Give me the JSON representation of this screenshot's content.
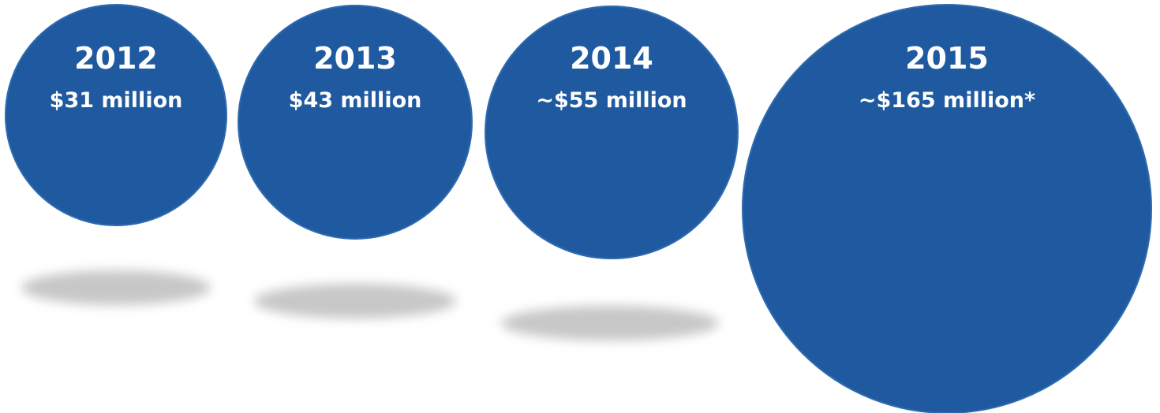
{
  "chart_data": {
    "type": "bubble",
    "title": "",
    "colors": {
      "bubble": "#1f5aa0",
      "bubble_edge": "#2f6bb0",
      "shadow": "#9a9a9a",
      "text": "#ffffff"
    },
    "points": [
      {
        "year": "2012",
        "value": 31,
        "label": "$31 million"
      },
      {
        "year": "2013",
        "value": 43,
        "label": "$43 million"
      },
      {
        "year": "2014",
        "value": 55,
        "label": "~$55 million"
      },
      {
        "year": "2015",
        "value": 165,
        "label": "~$165 million*"
      }
    ]
  }
}
